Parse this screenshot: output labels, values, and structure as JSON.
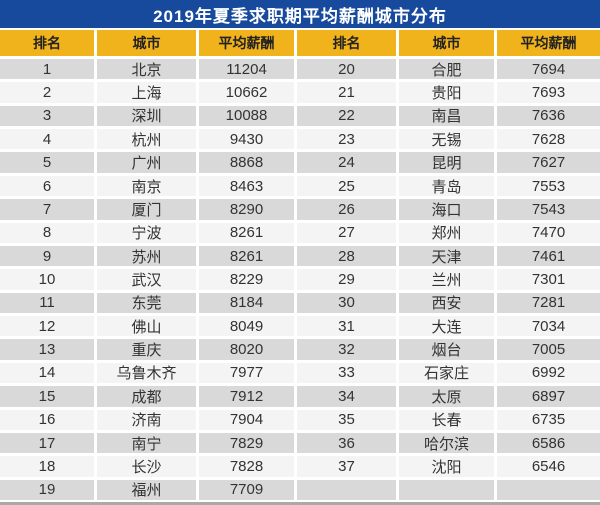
{
  "title": "2019年夏季求职期平均薪酬城市分布",
  "colors": {
    "title_bg": "#17499D",
    "title_text": "#FFFFFF",
    "header_bg": "#F1B31B",
    "header_text": "#222222",
    "row_odd": "#D9D9D9",
    "row_even": "#F4F4F4",
    "cell_text": "#333333",
    "separator": "#FFFFFF",
    "bottom_strip": "#A9A9A9"
  },
  "table": {
    "header_labels": [
      "排名",
      "城市",
      "平均薪酬"
    ],
    "left_rows_count": 19
  },
  "chart_data": {
    "type": "table",
    "title": "2019年夏季求职期平均薪酬城市分布",
    "columns": [
      "排名",
      "城市",
      "平均薪酬"
    ],
    "rows": [
      [
        1,
        "北京",
        11204
      ],
      [
        2,
        "上海",
        10662
      ],
      [
        3,
        "深圳",
        10088
      ],
      [
        4,
        "杭州",
        9430
      ],
      [
        5,
        "广州",
        8868
      ],
      [
        6,
        "南京",
        8463
      ],
      [
        7,
        "厦门",
        8290
      ],
      [
        8,
        "宁波",
        8261
      ],
      [
        9,
        "苏州",
        8261
      ],
      [
        10,
        "武汉",
        8229
      ],
      [
        11,
        "东莞",
        8184
      ],
      [
        12,
        "佛山",
        8049
      ],
      [
        13,
        "重庆",
        8020
      ],
      [
        14,
        "乌鲁木齐",
        7977
      ],
      [
        15,
        "成都",
        7912
      ],
      [
        16,
        "济南",
        7904
      ],
      [
        17,
        "南宁",
        7829
      ],
      [
        18,
        "长沙",
        7828
      ],
      [
        19,
        "福州",
        7709
      ],
      [
        20,
        "合肥",
        7694
      ],
      [
        21,
        "贵阳",
        7693
      ],
      [
        22,
        "南昌",
        7636
      ],
      [
        23,
        "无锡",
        7628
      ],
      [
        24,
        "昆明",
        7627
      ],
      [
        25,
        "青岛",
        7553
      ],
      [
        26,
        "海口",
        7543
      ],
      [
        27,
        "郑州",
        7470
      ],
      [
        28,
        "天津",
        7461
      ],
      [
        29,
        "兰州",
        7301
      ],
      [
        30,
        "西安",
        7281
      ],
      [
        31,
        "大连",
        7034
      ],
      [
        32,
        "烟台",
        7005
      ],
      [
        33,
        "石家庄",
        6992
      ],
      [
        34,
        "太原",
        6897
      ],
      [
        35,
        "长春",
        6735
      ],
      [
        36,
        "哈尔滨",
        6586
      ],
      [
        37,
        "沈阳",
        6546
      ]
    ]
  }
}
